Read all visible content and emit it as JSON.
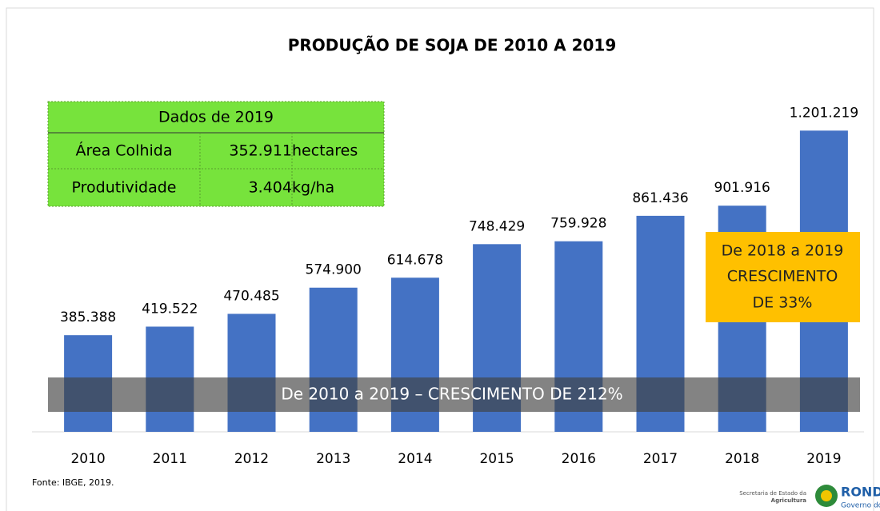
{
  "chart_data": {
    "type": "bar",
    "title": "PRODUÇÃO DE SOJA DE 2010 A 2019",
    "categories": [
      "2010",
      "2011",
      "2012",
      "2013",
      "2014",
      "2015",
      "2016",
      "2017",
      "2018",
      "2019"
    ],
    "values": [
      385388,
      419522,
      470485,
      574900,
      614678,
      748429,
      759928,
      861436,
      901916,
      1201219
    ],
    "value_labels": [
      "385.388",
      "419.522",
      "470.485",
      "574.900",
      "614.678",
      "748.429",
      "759.928",
      "861.436",
      "901.916",
      "1.201.219"
    ],
    "color": "#4472c4",
    "ylim": [
      0,
      1400000
    ],
    "grid": false,
    "annotations": {
      "band": "De 2010 a 2019 – CRESCIMENTO DE 212%",
      "box": [
        "De 2018 a 2019",
        "CRESCIMENTO",
        "DE 33%"
      ]
    },
    "info_table": {
      "header": "Dados de 2019",
      "rows": [
        [
          "Área Colhida",
          "352.911",
          "hectares"
        ],
        [
          "Produtividade",
          "3.404",
          "kg/ha"
        ]
      ]
    },
    "source": "Fonte: IBGE, 2019.",
    "logo": {
      "agency": [
        "Secretaria de Estado da",
        "Agricultura"
      ],
      "state": "RONDÔ",
      "government": "Governo do E"
    }
  }
}
